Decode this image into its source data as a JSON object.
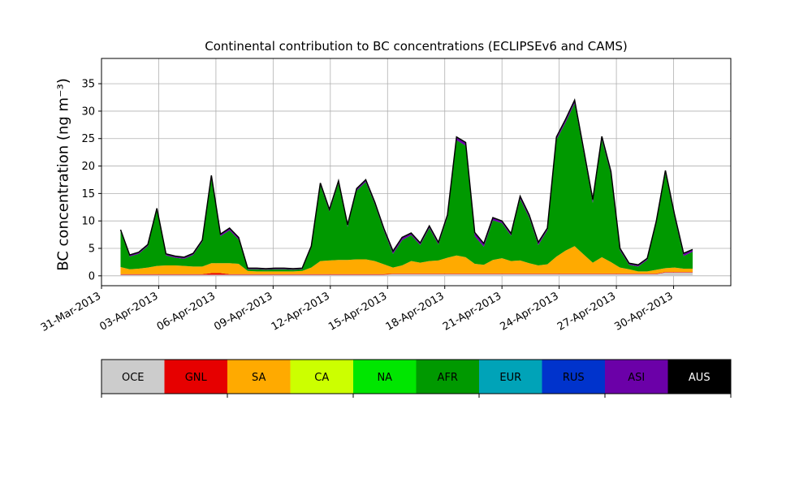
{
  "chart_data": {
    "type": "area",
    "title": "Continental contribution to BC concentrations (ECLIPSEv6 and CAMS)",
    "xlabel": "",
    "ylabel": "BC concentration (ng m⁻³)",
    "x_start": "2013-04-01",
    "x_end": "2013-05-01",
    "xlim": [
      "2013-03-31",
      "2013-05-03"
    ],
    "ylim": [
      -1.8,
      39.6
    ],
    "xticks": [
      "31-Mar-2013",
      "03-Apr-2013",
      "06-Apr-2013",
      "09-Apr-2013",
      "12-Apr-2013",
      "15-Apr-2013",
      "18-Apr-2013",
      "21-Apr-2013",
      "24-Apr-2013",
      "27-Apr-2013",
      "30-Apr-2013"
    ],
    "yticks": [
      0,
      5,
      10,
      15,
      20,
      25,
      30,
      35
    ],
    "grid": true,
    "series": [
      {
        "name": "OCE",
        "color": "#cccccc",
        "values": [
          0.2,
          0.2,
          0.2,
          0.2,
          0.2,
          0.2,
          0.2,
          0.2,
          0.2,
          0.2,
          0.2,
          0.2,
          0.2,
          0.2,
          0.2,
          0.2,
          0.2,
          0.2,
          0.2,
          0.2,
          0.2,
          0.2,
          0.2,
          0.2,
          0.2,
          0.2,
          0.2,
          0.2,
          0.2,
          0.2,
          0.3,
          0.3,
          0.3,
          0.3,
          0.3,
          0.3,
          0.3,
          0.3,
          0.3,
          0.3,
          0.3,
          0.3,
          0.3,
          0.3,
          0.3,
          0.3,
          0.3,
          0.3,
          0.3,
          0.3,
          0.3,
          0.3,
          0.3,
          0.3,
          0.3,
          0.3,
          0.3,
          0.3,
          0.3,
          0.3,
          0.6,
          0.6,
          0.6,
          0.6
        ]
      },
      {
        "name": "GNL",
        "color": "#e60000",
        "values": [
          0.1,
          0.1,
          0.1,
          0.1,
          0.1,
          0.1,
          0.1,
          0.1,
          0.1,
          0.1,
          0.3,
          0.3,
          0.1,
          0.1,
          0.1,
          0.1,
          0.1,
          0.1,
          0.1,
          0.1,
          0.1,
          0.1,
          0.1,
          0.1,
          0.1,
          0.1,
          0.1,
          0.1,
          0.1,
          0.1,
          0.1,
          0.1,
          0.1,
          0.1,
          0.1,
          0.1,
          0.1,
          0.1,
          0.1,
          0.1,
          0.1,
          0.1,
          0.1,
          0.1,
          0.1,
          0.1,
          0.1,
          0.1,
          0.1,
          0.1,
          0.1,
          0.1,
          0.1,
          0.1,
          0.1,
          0.1,
          0.1,
          0.1,
          0.1,
          0.1,
          0.1,
          0.1,
          0.1,
          0.1
        ]
      },
      {
        "name": "SA",
        "color": "#ffaa00",
        "values": [
          1.3,
          0.9,
          1.0,
          1.2,
          1.5,
          1.6,
          1.6,
          1.5,
          1.4,
          1.4,
          1.8,
          1.8,
          2.0,
          1.9,
          0.6,
          0.5,
          0.5,
          0.5,
          0.5,
          0.5,
          0.6,
          1.2,
          2.4,
          2.5,
          2.6,
          2.6,
          2.7,
          2.7,
          2.4,
          1.8,
          1.1,
          1.5,
          2.3,
          2.0,
          2.3,
          2.4,
          2.9,
          3.3,
          3.0,
          1.8,
          1.6,
          2.5,
          2.8,
          2.3,
          2.4,
          1.9,
          1.5,
          1.7,
          3.1,
          4.2,
          5.0,
          3.5,
          2.0,
          3.0,
          2.1,
          1.1,
          0.8,
          0.4,
          0.4,
          0.7,
          0.7,
          0.8,
          0.6,
          0.6
        ]
      },
      {
        "name": "CA",
        "color": "#ccff00",
        "values": [
          0,
          0,
          0,
          0,
          0,
          0,
          0,
          0,
          0,
          0,
          0,
          0,
          0,
          0,
          0,
          0,
          0,
          0,
          0,
          0,
          0,
          0,
          0,
          0,
          0,
          0,
          0,
          0,
          0,
          0,
          0,
          0,
          0,
          0,
          0,
          0,
          0,
          0,
          0,
          0,
          0,
          0,
          0,
          0,
          0,
          0,
          0,
          0,
          0,
          0,
          0,
          0,
          0,
          0,
          0,
          0,
          0,
          0,
          0,
          0,
          0,
          0,
          0,
          0
        ]
      },
      {
        "name": "NA",
        "color": "#00e600",
        "values": [
          0,
          0,
          0,
          0,
          0,
          0,
          0,
          0,
          0,
          0,
          0,
          0,
          0,
          0,
          0,
          0,
          0,
          0,
          0,
          0,
          0,
          0,
          0,
          0,
          0,
          0,
          0,
          0,
          0,
          0,
          0,
          0,
          0,
          0,
          0,
          0,
          0,
          0,
          0,
          0,
          0,
          0,
          0,
          0,
          0,
          0,
          0,
          0,
          0,
          0,
          0,
          0,
          0,
          0,
          0,
          0,
          0,
          0,
          0,
          0,
          0,
          0,
          0,
          0
        ]
      },
      {
        "name": "AFR",
        "color": "#009900",
        "values": [
          6.5,
          2.3,
          2.7,
          3.9,
          10.2,
          1.8,
          1.4,
          1.3,
          2.1,
          4.5,
          15.6,
          4.9,
          6.0,
          4.4,
          0.3,
          0.4,
          0.3,
          0.4,
          0.4,
          0.3,
          0.3,
          3.6,
          13.8,
          8.9,
          14.0,
          6.0,
          12.5,
          14.1,
          10.3,
          6.1,
          2.5,
          4.6,
          4.7,
          3.2,
          6.0,
          2.9,
          7.4,
          21.0,
          20.3,
          5.0,
          3.3,
          7.2,
          6.4,
          4.6,
          11.2,
          8.3,
          3.7,
          6.2,
          21.3,
          23.3,
          26.0,
          18.5,
          10.9,
          21.4,
          16.0,
          3.1,
          0.8,
          0.9,
          2.1,
          8.5,
          17.3,
          9.2,
          2.3,
          3.1
        ]
      },
      {
        "name": "EUR",
        "color": "#00a3b8",
        "values": [
          0,
          0,
          0,
          0,
          0,
          0,
          0,
          0,
          0,
          0,
          0,
          0,
          0,
          0,
          0,
          0,
          0,
          0,
          0,
          0,
          0,
          0,
          0,
          0,
          0,
          0,
          0,
          0,
          0,
          0,
          0,
          0,
          0,
          0,
          0,
          0,
          0,
          0,
          0,
          0,
          0,
          0,
          0,
          0,
          0,
          0,
          0,
          0,
          0,
          0,
          0,
          0,
          0,
          0,
          0,
          0,
          0,
          0,
          0,
          0,
          0,
          0,
          0,
          0
        ]
      },
      {
        "name": "RUS",
        "color": "#0033cc",
        "values": [
          0,
          0,
          0,
          0,
          0,
          0,
          0,
          0,
          0,
          0,
          0,
          0,
          0,
          0,
          0,
          0,
          0,
          0,
          0,
          0,
          0,
          0,
          0,
          0,
          0,
          0,
          0,
          0,
          0,
          0,
          0,
          0,
          0,
          0,
          0,
          0,
          0,
          0,
          0,
          0,
          0,
          0,
          0,
          0,
          0,
          0,
          0,
          0,
          0,
          0,
          0,
          0,
          0,
          0,
          0,
          0,
          0,
          0,
          0,
          0,
          0,
          0,
          0,
          0
        ]
      },
      {
        "name": "ASI",
        "color": "#6b00a8",
        "values": [
          0.2,
          0.2,
          0.2,
          0.2,
          0.2,
          0.2,
          0.2,
          0.2,
          0.2,
          0.2,
          0.3,
          0.3,
          0.3,
          0.3,
          0.1,
          0.1,
          0.1,
          0.1,
          0.1,
          0.1,
          0.1,
          0.2,
          0.3,
          0.3,
          0.3,
          0.3,
          0.3,
          0.3,
          0.3,
          0.3,
          0.4,
          0.4,
          0.3,
          0.3,
          0.3,
          0.3,
          0.3,
          0.5,
          0.5,
          0.6,
          0.5,
          0.4,
          0.3,
          0.3,
          0.4,
          0.4,
          0.4,
          0.3,
          0.4,
          0.5,
          0.5,
          0.5,
          0.5,
          0.5,
          0.4,
          0.3,
          0.2,
          0.2,
          0.2,
          0.3,
          0.4,
          0.4,
          0.4,
          0.3
        ]
      },
      {
        "name": "AUS",
        "color": "#000000",
        "values": [
          0.1,
          0.1,
          0.1,
          0.1,
          0.1,
          0.1,
          0.1,
          0.1,
          0.1,
          0.1,
          0.1,
          0.1,
          0.1,
          0.1,
          0.1,
          0.1,
          0.1,
          0.1,
          0.1,
          0.1,
          0.1,
          0.1,
          0.1,
          0.1,
          0.1,
          0.1,
          0.1,
          0.1,
          0.1,
          0.1,
          0.1,
          0.1,
          0.1,
          0.1,
          0.1,
          0.1,
          0.1,
          0.1,
          0.1,
          0.1,
          0.1,
          0.1,
          0.1,
          0.1,
          0.1,
          0.1,
          0.1,
          0.1,
          0.1,
          0.1,
          0.1,
          0.1,
          0.1,
          0.1,
          0.1,
          0.1,
          0.1,
          0.1,
          0.1,
          0.1,
          0.1,
          0.1,
          0.1,
          0.1
        ]
      }
    ],
    "legend": {
      "placement": "bottom",
      "labels": [
        "OCE",
        "GNL",
        "SA",
        "CA",
        "NA",
        "AFR",
        "EUR",
        "RUS",
        "ASI",
        "AUS"
      ]
    }
  }
}
